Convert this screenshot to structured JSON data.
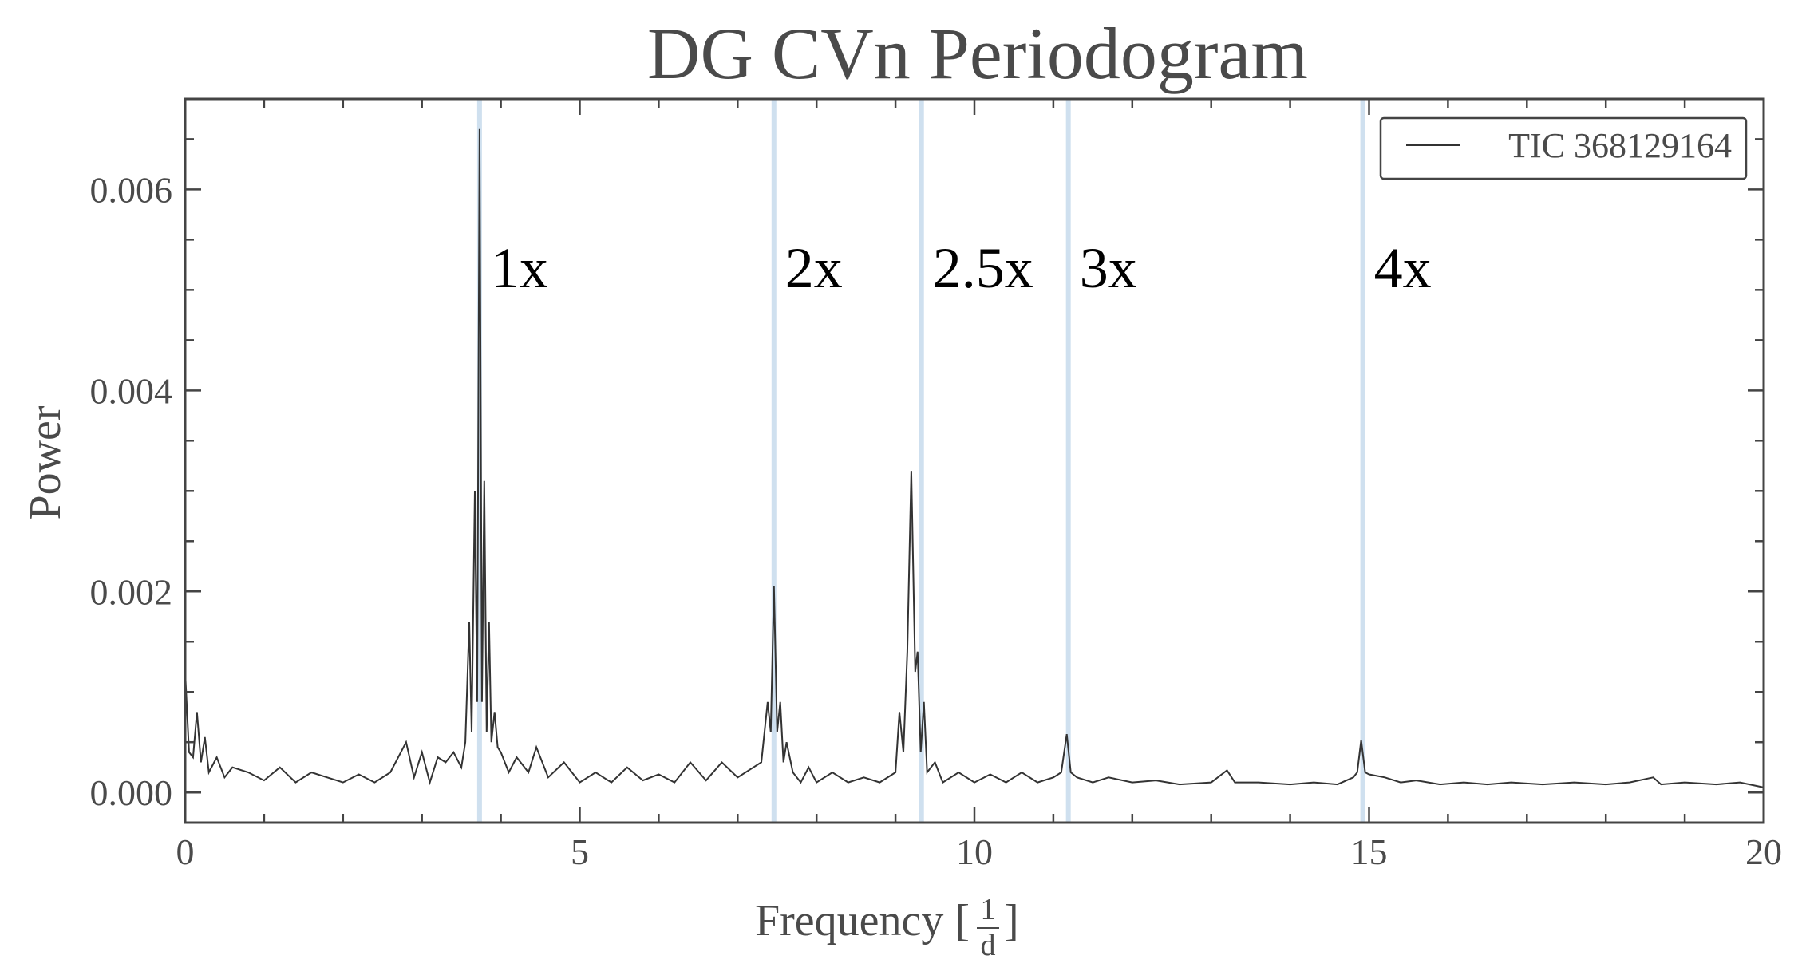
{
  "chart_data": {
    "type": "line",
    "title": "DG CVn Periodogram",
    "xlabel_main": "Frequency [",
    "xlabel_num": "1",
    "xlabel_den": "d",
    "xlabel_close": "]",
    "ylabel": "Power",
    "xlim": [
      0,
      20
    ],
    "ylim": [
      -0.0003,
      0.0069
    ],
    "xticks": [
      0,
      5,
      10,
      15,
      20
    ],
    "xtick_labels": [
      "0",
      "5",
      "10",
      "15",
      "20"
    ],
    "yticks": [
      0.0,
      0.002,
      0.004,
      0.006
    ],
    "ytick_labels": [
      "0.000",
      "0.002",
      "0.004",
      "0.006"
    ],
    "grid": false,
    "legend": {
      "position": "top-right"
    },
    "series": [
      {
        "name": "TIC 368129164",
        "color": "#333333",
        "points": [
          [
            0.0,
            0.0012
          ],
          [
            0.05,
            0.0004
          ],
          [
            0.1,
            0.00035
          ],
          [
            0.15,
            0.0008
          ],
          [
            0.2,
            0.0003
          ],
          [
            0.25,
            0.00055
          ],
          [
            0.3,
            0.0002
          ],
          [
            0.4,
            0.00035
          ],
          [
            0.5,
            0.00015
          ],
          [
            0.6,
            0.00025
          ],
          [
            0.8,
            0.0002
          ],
          [
            1.0,
            0.00012
          ],
          [
            1.2,
            0.00025
          ],
          [
            1.4,
            0.0001
          ],
          [
            1.6,
            0.0002
          ],
          [
            1.8,
            0.00015
          ],
          [
            2.0,
            0.0001
          ],
          [
            2.2,
            0.00018
          ],
          [
            2.4,
            0.0001
          ],
          [
            2.6,
            0.0002
          ],
          [
            2.8,
            0.0005
          ],
          [
            2.9,
            0.00015
          ],
          [
            3.0,
            0.0004
          ],
          [
            3.1,
            0.0001
          ],
          [
            3.2,
            0.00035
          ],
          [
            3.3,
            0.0003
          ],
          [
            3.4,
            0.0004
          ],
          [
            3.5,
            0.00025
          ],
          [
            3.55,
            0.0005
          ],
          [
            3.6,
            0.0017
          ],
          [
            3.63,
            0.0006
          ],
          [
            3.67,
            0.003
          ],
          [
            3.7,
            0.0009
          ],
          [
            3.73,
            0.0066
          ],
          [
            3.76,
            0.0009
          ],
          [
            3.79,
            0.0031
          ],
          [
            3.82,
            0.0006
          ],
          [
            3.85,
            0.0017
          ],
          [
            3.88,
            0.0005
          ],
          [
            3.92,
            0.0008
          ],
          [
            3.96,
            0.00045
          ],
          [
            4.0,
            0.0004
          ],
          [
            4.1,
            0.0002
          ],
          [
            4.2,
            0.00035
          ],
          [
            4.35,
            0.0002
          ],
          [
            4.45,
            0.00045
          ],
          [
            4.6,
            0.00015
          ],
          [
            4.8,
            0.0003
          ],
          [
            5.0,
            0.0001
          ],
          [
            5.2,
            0.0002
          ],
          [
            5.4,
            0.0001
          ],
          [
            5.6,
            0.00025
          ],
          [
            5.8,
            0.00012
          ],
          [
            6.0,
            0.00018
          ],
          [
            6.2,
            0.0001
          ],
          [
            6.4,
            0.0003
          ],
          [
            6.6,
            0.00012
          ],
          [
            6.8,
            0.0003
          ],
          [
            7.0,
            0.00015
          ],
          [
            7.2,
            0.00025
          ],
          [
            7.3,
            0.0003
          ],
          [
            7.38,
            0.0009
          ],
          [
            7.42,
            0.0006
          ],
          [
            7.46,
            0.00205
          ],
          [
            7.5,
            0.0006
          ],
          [
            7.54,
            0.0009
          ],
          [
            7.58,
            0.0003
          ],
          [
            7.62,
            0.0005
          ],
          [
            7.7,
            0.0002
          ],
          [
            7.8,
            0.0001
          ],
          [
            7.9,
            0.00025
          ],
          [
            8.0,
            0.0001
          ],
          [
            8.2,
            0.0002
          ],
          [
            8.4,
            0.0001
          ],
          [
            8.6,
            0.00015
          ],
          [
            8.8,
            0.0001
          ],
          [
            9.0,
            0.0002
          ],
          [
            9.05,
            0.0008
          ],
          [
            9.1,
            0.0004
          ],
          [
            9.15,
            0.0014
          ],
          [
            9.2,
            0.0032
          ],
          [
            9.25,
            0.0012
          ],
          [
            9.28,
            0.0014
          ],
          [
            9.32,
            0.0004
          ],
          [
            9.36,
            0.0009
          ],
          [
            9.4,
            0.0002
          ],
          [
            9.5,
            0.0003
          ],
          [
            9.6,
            0.0001
          ],
          [
            9.8,
            0.0002
          ],
          [
            10.0,
            0.0001
          ],
          [
            10.2,
            0.00018
          ],
          [
            10.4,
            0.0001
          ],
          [
            10.6,
            0.0002
          ],
          [
            10.8,
            0.0001
          ],
          [
            11.0,
            0.00015
          ],
          [
            11.1,
            0.0002
          ],
          [
            11.17,
            0.00058
          ],
          [
            11.22,
            0.0002
          ],
          [
            11.3,
            0.00015
          ],
          [
            11.5,
            0.0001
          ],
          [
            11.7,
            0.00015
          ],
          [
            12.0,
            0.0001
          ],
          [
            12.3,
            0.00012
          ],
          [
            12.6,
            8e-05
          ],
          [
            13.0,
            0.0001
          ],
          [
            13.2,
            0.00022
          ],
          [
            13.3,
            0.0001
          ],
          [
            13.6,
            0.0001
          ],
          [
            14.0,
            8e-05
          ],
          [
            14.3,
            0.0001
          ],
          [
            14.6,
            8e-05
          ],
          [
            14.8,
            0.00015
          ],
          [
            14.85,
            0.0002
          ],
          [
            14.9,
            0.00052
          ],
          [
            14.95,
            0.0002
          ],
          [
            15.0,
            0.00018
          ],
          [
            15.2,
            0.00015
          ],
          [
            15.4,
            0.0001
          ],
          [
            15.6,
            0.00012
          ],
          [
            15.9,
            8e-05
          ],
          [
            16.2,
            0.0001
          ],
          [
            16.5,
            8e-05
          ],
          [
            16.8,
            0.0001
          ],
          [
            17.2,
            8e-05
          ],
          [
            17.6,
            0.0001
          ],
          [
            18.0,
            8e-05
          ],
          [
            18.3,
            0.0001
          ],
          [
            18.6,
            0.00015
          ],
          [
            18.7,
            8e-05
          ],
          [
            19.0,
            0.0001
          ],
          [
            19.4,
            8e-05
          ],
          [
            19.7,
            0.0001
          ],
          [
            20.0,
            5e-05
          ]
        ]
      }
    ],
    "harmonics": [
      {
        "label": "1x",
        "x": 3.73
      },
      {
        "label": "2x",
        "x": 7.46
      },
      {
        "label": "2.5x",
        "x": 9.33
      },
      {
        "label": "3x",
        "x": 11.19
      },
      {
        "label": "4x",
        "x": 14.92
      }
    ],
    "harmonic_line_color": "#cfe0ef",
    "axis_color": "#444444",
    "text_color": "#4a4a4a"
  }
}
